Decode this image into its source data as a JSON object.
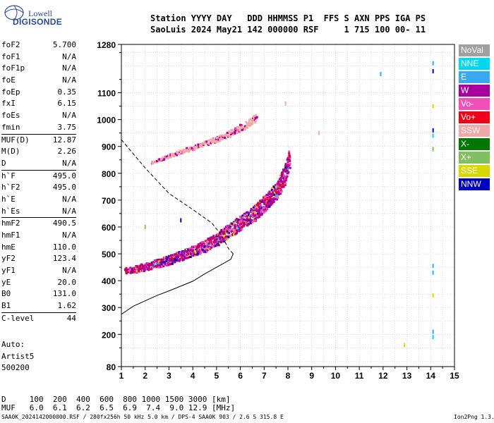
{
  "logo": {
    "line1": "Lowell",
    "line2": "DIGISONDE"
  },
  "header": {
    "line1": "Station YYYY DAY   DDD HHMMSS P1  FFS S AXN PPS IGA PS",
    "line2": "SaoLuis 2024 May21 142 000000 RSF     1 715 100 00- 11"
  },
  "parameters": [
    {
      "name": "foF2",
      "value": "5.700"
    },
    {
      "name": "foF1",
      "value": "N/A"
    },
    {
      "name": "foF1p",
      "value": "N/A"
    },
    {
      "name": "foE",
      "value": "N/A"
    },
    {
      "name": "foEp",
      "value": "0.35"
    },
    {
      "name": "fxI",
      "value": "6.15"
    },
    {
      "name": "foEs",
      "value": "N/A"
    },
    {
      "name": "fmin",
      "value": "3.75"
    },
    {
      "name": "MUF(D)",
      "value": "12.87",
      "sep": true
    },
    {
      "name": "M(D)",
      "value": "2.26"
    },
    {
      "name": "D",
      "value": "N/A"
    },
    {
      "name": "h`F",
      "value": "495.0",
      "sep": true
    },
    {
      "name": "h`F2",
      "value": "495.0"
    },
    {
      "name": "h`E",
      "value": "N/A"
    },
    {
      "name": "h`Es",
      "value": "N/A"
    },
    {
      "name": "hmF2",
      "value": "490.5",
      "sep": true
    },
    {
      "name": "hmF1",
      "value": "N/A"
    },
    {
      "name": "hmE",
      "value": "110.0"
    },
    {
      "name": "yF2",
      "value": "123.4"
    },
    {
      "name": "yF1",
      "value": "N/A"
    },
    {
      "name": "yE",
      "value": "20.0"
    },
    {
      "name": "B0",
      "value": "131.0"
    },
    {
      "name": "B1",
      "value": "1.62"
    },
    {
      "name": "C-level",
      "value": "44",
      "sep": true
    }
  ],
  "auto_info": [
    "Auto:",
    "Artist5",
    "500200"
  ],
  "legend": [
    {
      "label": "NoVal",
      "color": "#a0a0a0"
    },
    {
      "label": "NNE",
      "color": "#00d8f0"
    },
    {
      "label": "E",
      "color": "#38a8f0"
    },
    {
      "label": "W",
      "color": "#a8009c"
    },
    {
      "label": "Vo-",
      "color": "#f050b8"
    },
    {
      "label": "Vo+",
      "color": "#f00018"
    },
    {
      "label": "SSW",
      "color": "#f0a8a8"
    },
    {
      "label": "X-",
      "color": "#007800"
    },
    {
      "label": "X+",
      "color": "#80c060"
    },
    {
      "label": "SSE",
      "color": "#d8d800"
    },
    {
      "label": "NNW",
      "color": "#0000c0"
    }
  ],
  "muf_table": {
    "d_line": "D     100  200  400  600  800 1000 1500 3000 [km]",
    "muf_line": "MUF   6.0  6.1  6.2  6.5  6.9  7.4  9.0 12.9 [MHz]"
  },
  "footer": {
    "left": "SAA0K_2024142000000.RSF / 280fx256h 50 kHz 5.0 km / DPS-4 SAA0K 903 / 2.6 S 315.8 E",
    "right": "Ion2Png 1.3.17"
  },
  "chart_data": {
    "type": "scatter",
    "xlim": [
      1,
      15
    ],
    "ylim": [
      80,
      1280
    ],
    "xlabel": "",
    "ylabel": "",
    "x_ticks": [
      "1",
      "2",
      "3",
      "4",
      "5",
      "6",
      "7",
      "8",
      "9",
      "10",
      "11",
      "12",
      "13",
      "14",
      "15"
    ],
    "y_ticks": [
      "80",
      "200",
      "300",
      "400",
      "500",
      "600",
      "700",
      "800",
      "900",
      "1000",
      "1100",
      "1280"
    ],
    "y_tick_values": [
      80,
      200,
      300,
      400,
      500,
      600,
      700,
      800,
      900,
      1000,
      1100,
      1280
    ],
    "grid": true,
    "traces": [
      {
        "name": "O-trace F2",
        "color_mix": [
          "#a8009c",
          "#f050b8",
          "#f00018",
          "#0000c0",
          "#d8d800",
          "#00d8f0"
        ],
        "path": [
          [
            1.1,
            435
          ],
          [
            1.5,
            440
          ],
          [
            2,
            450
          ],
          [
            2.5,
            462
          ],
          [
            3,
            475
          ],
          [
            3.5,
            490
          ],
          [
            4,
            505
          ],
          [
            4.5,
            525
          ],
          [
            5,
            550
          ],
          [
            5.5,
            580
          ],
          [
            6,
            610
          ],
          [
            6.5,
            640
          ],
          [
            7,
            680
          ],
          [
            7.5,
            730
          ],
          [
            7.8,
            780
          ],
          [
            8,
            840
          ]
        ],
        "spread_h": 45
      },
      {
        "name": "multihop",
        "color_mix": [
          "#f0a8a8",
          "#a8009c",
          "#f050b8"
        ],
        "path": [
          [
            2.2,
            840
          ],
          [
            2.8,
            860
          ],
          [
            3.4,
            880
          ],
          [
            4,
            895
          ],
          [
            4.6,
            915
          ],
          [
            5.2,
            935
          ],
          [
            5.8,
            960
          ],
          [
            6.3,
            985
          ],
          [
            6.6,
            1005
          ]
        ],
        "spread_h": 18
      }
    ],
    "profile_curve": [
      [
        1,
        275
      ],
      [
        1.5,
        305
      ],
      [
        2,
        325
      ],
      [
        2.5,
        345
      ],
      [
        3,
        362
      ],
      [
        3.5,
        380
      ],
      [
        4,
        398
      ],
      [
        4.5,
        425
      ],
      [
        5,
        450
      ],
      [
        5.3,
        465
      ],
      [
        5.6,
        480
      ],
      [
        5.7,
        500
      ]
    ],
    "dashed_curve": [
      [
        1,
        925
      ],
      [
        2,
        820
      ],
      [
        3,
        725
      ],
      [
        4,
        665
      ],
      [
        4.8,
        615
      ],
      [
        5.2,
        570
      ],
      [
        5.5,
        520
      ],
      [
        5.7,
        500
      ]
    ],
    "stray_points": [
      [
        11.9,
        1170,
        "#38a8f0"
      ],
      [
        14.1,
        1180,
        "#0000c0"
      ],
      [
        14.1,
        1210,
        "#38a8f0"
      ],
      [
        14.1,
        960,
        "#0000c0"
      ],
      [
        14.1,
        940,
        "#00d8f0"
      ],
      [
        14.1,
        1050,
        "#d8d800"
      ],
      [
        14.1,
        455,
        "#38a8f0"
      ],
      [
        14.1,
        430,
        "#38a8f0"
      ],
      [
        14.1,
        345,
        "#d8d800"
      ],
      [
        14.1,
        210,
        "#38a8f0"
      ],
      [
        14.1,
        190,
        "#00d8f0"
      ],
      [
        12.9,
        160,
        "#d8d800"
      ],
      [
        9.3,
        950,
        "#f0a8a8"
      ],
      [
        7.9,
        1060,
        "#f0a8a8"
      ],
      [
        3.5,
        625,
        "#0000c0"
      ],
      [
        2,
        600,
        "#80c060"
      ],
      [
        14.1,
        890,
        "#80c060"
      ]
    ]
  }
}
